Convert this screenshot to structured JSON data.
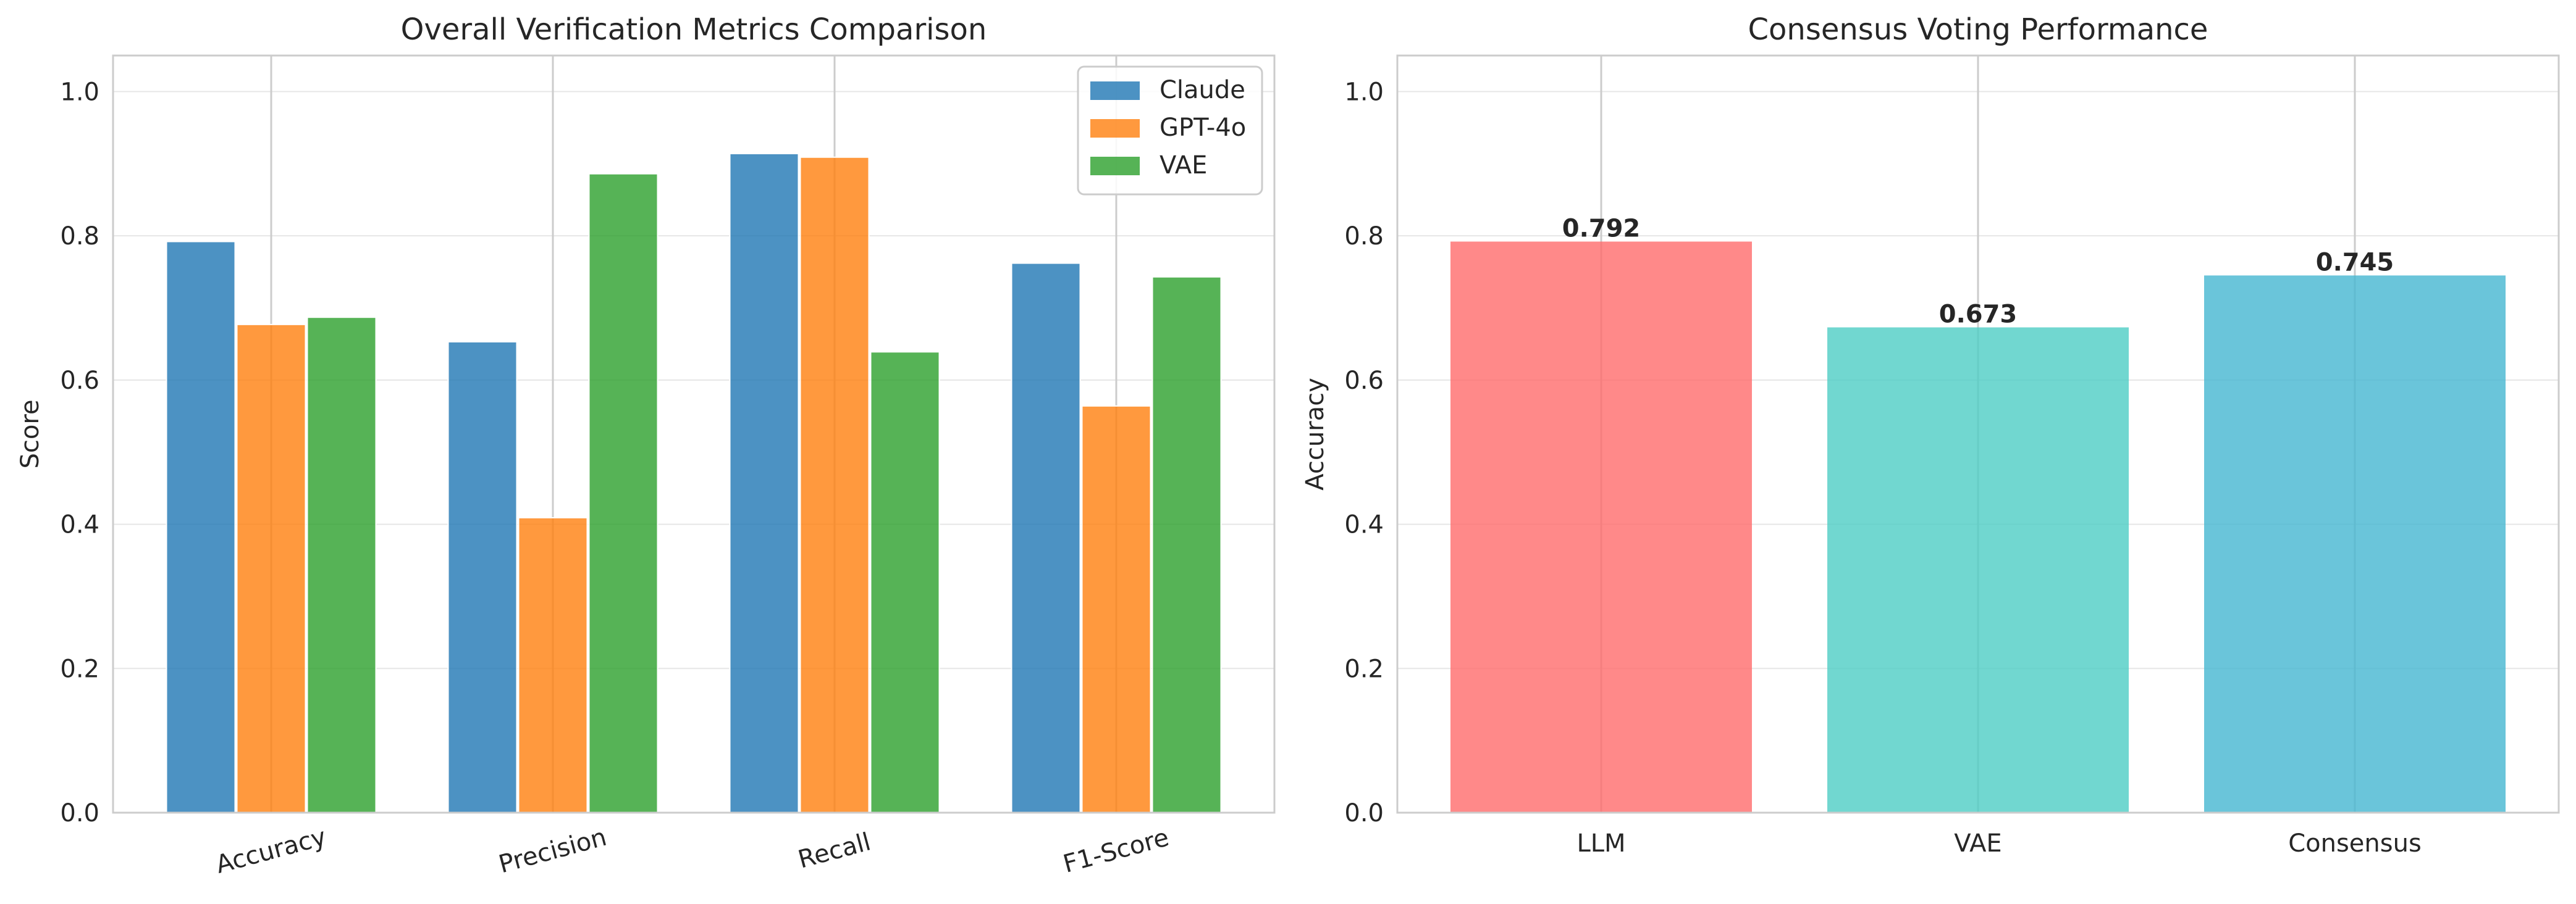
{
  "colors": {
    "claude": "#1f77b4",
    "gpt4o": "#ff7f0e",
    "vae": "#2ca02c",
    "llm_bar": "#ff6b6b",
    "vae_bar": "#4ecdc4",
    "consensus_bar": "#45b7d1",
    "grid": "#e6e6e6",
    "spine": "#cccccc"
  },
  "chart_data": [
    {
      "type": "bar",
      "title": "Overall Verification Metrics Comparison",
      "xlabel": "",
      "ylabel": "Score",
      "ylim": [
        0,
        1.05
      ],
      "yticks": [
        "0.0",
        "0.2",
        "0.4",
        "0.6",
        "0.8",
        "1.0"
      ],
      "grid": true,
      "legend_position": "top-right",
      "categories": [
        "Accuracy",
        "Precision",
        "Recall",
        "F1-Score"
      ],
      "series": [
        {
          "name": "Claude",
          "color": "#1f77b4",
          "values": [
            0.792,
            0.653,
            0.914,
            0.762
          ]
        },
        {
          "name": "GPT-4o",
          "color": "#ff7f0e",
          "values": [
            0.677,
            0.409,
            0.909,
            0.564
          ]
        },
        {
          "name": "VAE",
          "color": "#2ca02c",
          "values": [
            0.687,
            0.886,
            0.639,
            0.743
          ]
        }
      ]
    },
    {
      "type": "bar",
      "title": "Consensus Voting Performance",
      "xlabel": "",
      "ylabel": "Accuracy",
      "ylim": [
        0,
        1.05
      ],
      "yticks": [
        "0.0",
        "0.2",
        "0.4",
        "0.6",
        "0.8",
        "1.0"
      ],
      "grid": true,
      "categories": [
        "LLM",
        "VAE",
        "Consensus"
      ],
      "values": [
        0.792,
        0.673,
        0.745
      ],
      "value_labels": [
        "0.792",
        "0.673",
        "0.745"
      ],
      "colors": [
        "#ff6b6b",
        "#4ecdc4",
        "#45b7d1"
      ]
    }
  ]
}
